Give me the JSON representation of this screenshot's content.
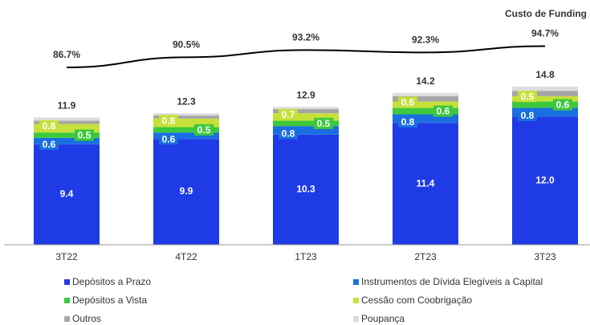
{
  "chart_data": {
    "type": "bar",
    "stacked": true,
    "categories": [
      "3T22",
      "4T22",
      "1T23",
      "2T23",
      "3T23"
    ],
    "ylim": [
      0,
      21.4
    ],
    "y2lim": [
      20,
      106
    ],
    "series": [
      {
        "name": "Depósitos a Prazo",
        "color": "#1f3be6",
        "values": [
          9.4,
          9.9,
          10.3,
          11.4,
          12.0
        ],
        "value_labels": [
          "9.4",
          "9.9",
          "10.3",
          "11.4",
          "12.0"
        ]
      },
      {
        "name": "Instrumentos de Dívida Elegíveis a Capital",
        "color": "#1a6ee0",
        "values": [
          0.6,
          0.6,
          0.8,
          0.8,
          0.8
        ]
      },
      {
        "name": "Depósitos a Vista",
        "color": "#3cc83c",
        "values": [
          0.5,
          0.5,
          0.5,
          0.6,
          0.6
        ]
      },
      {
        "name": "Cessão com Coobrigação",
        "color": "#c6e03a",
        "values": [
          0.8,
          0.8,
          0.7,
          0.6,
          0.5
        ]
      },
      {
        "name": "Outros",
        "color": "#a6a6a6",
        "values": [
          0.3,
          0.3,
          0.4,
          0.5,
          0.5
        ]
      },
      {
        "name": "Poupança",
        "color": "#dcdcdc",
        "values": [
          0.3,
          0.2,
          0.2,
          0.3,
          0.4
        ]
      },
      {
        "name": "Custo de Funding",
        "type": "line",
        "axis": "y2",
        "color": "#000000",
        "values": [
          86.7,
          90.5,
          93.2,
          92.3,
          94.7
        ],
        "value_labels": [
          "86.7%",
          "90.5%",
          "93.2%",
          "92.3%",
          "94.7%"
        ]
      }
    ],
    "totals": [
      11.9,
      12.3,
      12.9,
      14.2,
      14.8
    ]
  }
}
